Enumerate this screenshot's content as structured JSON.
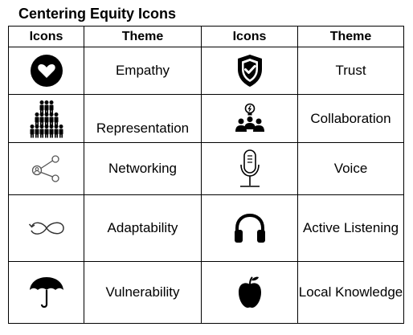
{
  "title": "Centering Equity Icons",
  "headers": [
    "Icons",
    "Theme",
    "Icons",
    "Theme"
  ],
  "rows": [
    {
      "left": {
        "icon": "heart-icon",
        "theme": "Empathy"
      },
      "right": {
        "icon": "shield-check-icon",
        "theme": "Trust"
      }
    },
    {
      "left": {
        "icon": "people-group-icon",
        "theme": "Representation"
      },
      "right": {
        "icon": "team-lightbulb-icon",
        "theme": "Collaboration"
      }
    },
    {
      "left": {
        "icon": "network-share-icon",
        "theme": "Networking"
      },
      "right": {
        "icon": "microphone-icon",
        "theme": "Voice"
      }
    },
    {
      "left": {
        "icon": "infinity-loop-icon",
        "theme": "Adaptability"
      },
      "right": {
        "icon": "headphones-icon",
        "theme": "Active Listening"
      }
    },
    {
      "left": {
        "icon": "umbrella-icon",
        "theme": "Vulnerability"
      },
      "right": {
        "icon": "apple-icon",
        "theme": "Local Knowledge"
      }
    }
  ]
}
